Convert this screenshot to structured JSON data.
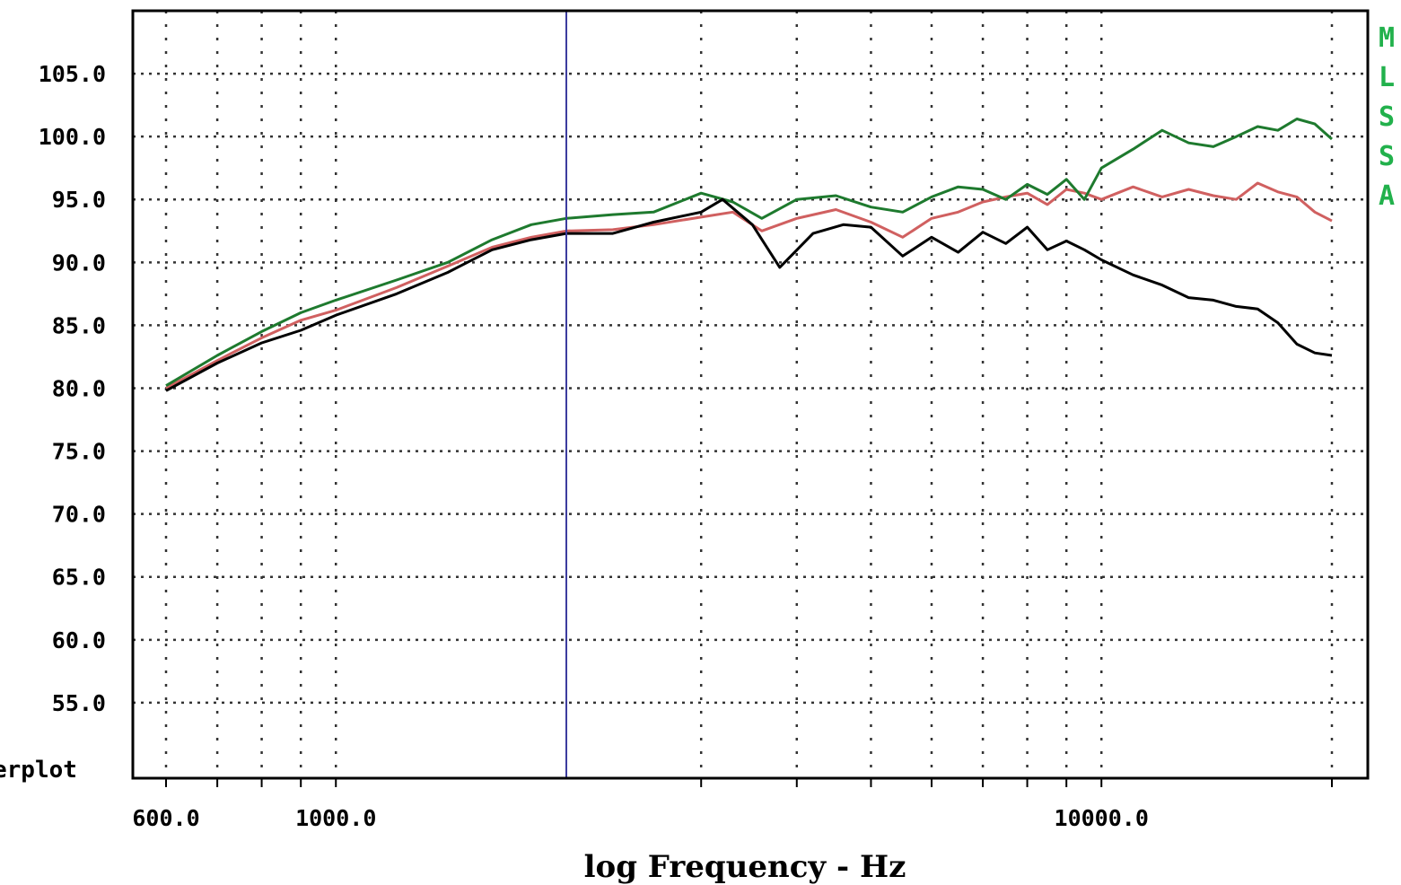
{
  "chart_data": {
    "type": "line",
    "xscale": "log",
    "xlabel": "log Frequency - Hz",
    "ylabel": "",
    "xlim": [
      600,
      20000
    ],
    "ylim": [
      49,
      110
    ],
    "yticks": [
      "105.0",
      "100.0",
      "95.0",
      "90.0",
      "85.0",
      "80.0",
      "75.0",
      "70.0",
      "65.0",
      "60.0",
      "55.0"
    ],
    "xticks": [
      {
        "value": 600,
        "label": "600.0"
      },
      {
        "value": 1000,
        "label": "1000.0"
      },
      {
        "value": 10000,
        "label": "10000.0"
      }
    ],
    "side_label": "erplot",
    "legend_text": "MLSSA",
    "grid": true,
    "cursor_x": 2000,
    "colors": {
      "frame": "#000000",
      "grid": "#333333",
      "cursor": "#3b3b9e",
      "legend": "#22b14c"
    },
    "series": [
      {
        "color": "#d06060",
        "x": [
          600,
          700,
          800,
          900,
          1000,
          1200,
          1400,
          1600,
          1800,
          2000,
          2300,
          2600,
          3000,
          3300,
          3600,
          4000,
          4500,
          5000,
          5500,
          6000,
          6500,
          7000,
          7500,
          8000,
          8500,
          9000,
          9500,
          10000,
          11000,
          12000,
          13000,
          14000,
          15000,
          16000,
          17000,
          18000,
          19000,
          20000
        ],
        "y": [
          80.0,
          82.2,
          84.0,
          85.4,
          86.2,
          88.0,
          89.7,
          91.2,
          92.0,
          92.5,
          92.6,
          93.0,
          93.6,
          94.0,
          92.5,
          93.5,
          94.2,
          93.2,
          92.0,
          93.5,
          94.0,
          94.8,
          95.2,
          95.5,
          94.6,
          95.8,
          95.5,
          95.0,
          96.0,
          95.2,
          95.8,
          95.3,
          95.0,
          96.3,
          95.6,
          95.2,
          94.0,
          93.3
        ]
      },
      {
        "color": "#1e7a2e",
        "x": [
          600,
          700,
          800,
          900,
          1000,
          1200,
          1400,
          1600,
          1800,
          2000,
          2300,
          2600,
          3000,
          3300,
          3600,
          4000,
          4500,
          5000,
          5500,
          6000,
          6500,
          7000,
          7500,
          8000,
          8500,
          9000,
          9500,
          10000,
          11000,
          12000,
          13000,
          14000,
          15000,
          16000,
          17000,
          18000,
          19000,
          20000
        ],
        "y": [
          80.2,
          82.6,
          84.5,
          86.0,
          87.0,
          88.6,
          90.0,
          91.8,
          93.0,
          93.5,
          93.8,
          94.0,
          95.5,
          94.8,
          93.5,
          95.0,
          95.3,
          94.4,
          94.0,
          95.2,
          96.0,
          95.8,
          95.0,
          96.2,
          95.4,
          96.6,
          95.0,
          97.5,
          99.0,
          100.5,
          99.5,
          99.2,
          100.0,
          100.8,
          100.5,
          101.4,
          101.0,
          99.8
        ]
      },
      {
        "color": "#000000",
        "x": [
          600,
          700,
          800,
          900,
          1000,
          1200,
          1400,
          1600,
          1800,
          2000,
          2300,
          2600,
          3000,
          3200,
          3500,
          3800,
          4200,
          4600,
          5000,
          5500,
          6000,
          6500,
          7000,
          7500,
          8000,
          8500,
          9000,
          9500,
          10000,
          11000,
          12000,
          13000,
          14000,
          15000,
          16000,
          17000,
          18000,
          19000,
          20000
        ],
        "y": [
          79.8,
          82.0,
          83.6,
          84.6,
          85.8,
          87.5,
          89.2,
          91.0,
          91.8,
          92.3,
          92.3,
          93.2,
          94.0,
          95.0,
          93.0,
          89.6,
          92.3,
          93.0,
          92.8,
          90.5,
          92.0,
          90.8,
          92.4,
          91.5,
          92.8,
          91.0,
          91.7,
          91.0,
          90.2,
          89.0,
          88.2,
          87.2,
          87.0,
          86.5,
          86.3,
          85.2,
          83.5,
          82.8,
          82.6
        ]
      }
    ]
  }
}
